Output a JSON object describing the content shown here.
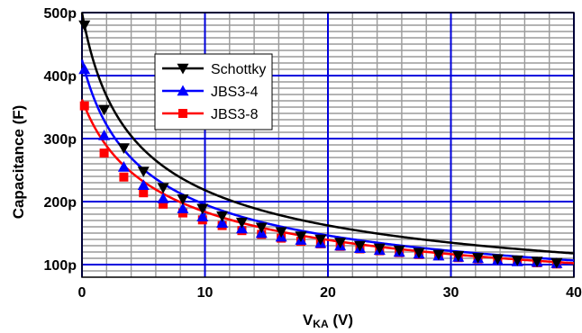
{
  "chart_data": {
    "type": "line",
    "title": "",
    "xlabel_main": "V",
    "xlabel_sub": "KA",
    "xlabel_unit": " (V)",
    "ylabel": "Capacitance (F)",
    "xlim": [
      0,
      40
    ],
    "ylim": [
      80,
      500
    ],
    "x_ticks": [
      0,
      10,
      20,
      30,
      40
    ],
    "x_tick_labels": [
      "0",
      "10",
      "20",
      "30",
      "40"
    ],
    "y_ticks": [
      100,
      200,
      300,
      400,
      500
    ],
    "y_tick_labels": [
      "100p",
      "200p",
      "300p",
      "400p",
      "500p"
    ],
    "grid": true,
    "legend_position": "top-left",
    "x": [
      0.2,
      1.8,
      3.4,
      5.0,
      6.6,
      8.2,
      9.8,
      11.4,
      13.0,
      14.6,
      16.2,
      17.8,
      19.4,
      21.0,
      22.6,
      24.2,
      25.8,
      27.4,
      29.0,
      30.6,
      32.2,
      33.8,
      35.4,
      37.0,
      38.6
    ],
    "series": [
      {
        "name": "Schottky",
        "color": "#000000",
        "marker": "triangle-down",
        "c0": 500,
        "values": [
          480,
          346,
          285,
          248,
          222,
          204,
          189,
          177,
          167,
          159,
          152,
          145,
          140,
          135,
          130,
          126,
          123,
          119,
          116,
          114,
          111,
          109,
          107,
          105,
          103
        ]
      },
      {
        "name": "JBS3-4",
        "color": "#0000ff",
        "marker": "triangle-up",
        "c0": 425,
        "values": [
          410,
          305,
          255,
          226,
          205,
          189,
          176,
          166,
          157,
          150,
          144,
          139,
          134,
          130,
          126,
          123,
          120,
          117,
          114,
          112,
          110,
          107,
          105,
          104,
          102
        ]
      },
      {
        "name": "JBS3-8",
        "color": "#ff0000",
        "marker": "square",
        "c0": 362,
        "values": [
          352,
          277,
          239,
          214,
          196,
          182,
          171,
          162,
          154,
          148,
          142,
          137,
          133,
          129,
          125,
          122,
          119,
          116,
          114,
          111,
          109,
          107,
          105,
          103,
          101
        ]
      }
    ]
  }
}
